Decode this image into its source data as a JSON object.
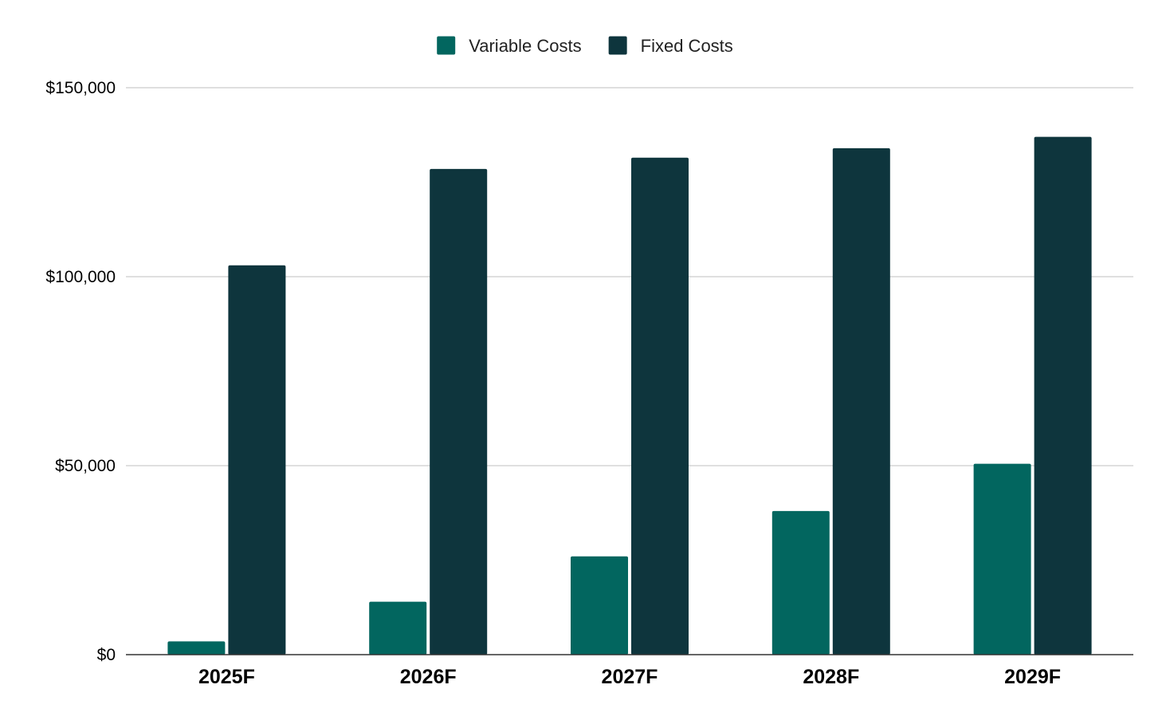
{
  "chart_data": {
    "type": "bar",
    "title": "",
    "xlabel": "",
    "ylabel": "",
    "categories": [
      "2025F",
      "2026F",
      "2027F",
      "2028F",
      "2029F"
    ],
    "series": [
      {
        "name": "Variable Costs",
        "color": "#02665f",
        "values": [
          3500,
          14000,
          26000,
          38000,
          50500
        ]
      },
      {
        "name": "Fixed Costs",
        "color": "#0e353d",
        "values": [
          103000,
          128500,
          131500,
          134000,
          137000
        ]
      }
    ],
    "ylim": [
      0,
      150000
    ],
    "yticks": [
      0,
      50000,
      100000,
      150000
    ],
    "ytick_labels": [
      "$0",
      "$50,000",
      "$100,000",
      "$150,000"
    ],
    "grid": true,
    "legend_position": "top-center"
  }
}
